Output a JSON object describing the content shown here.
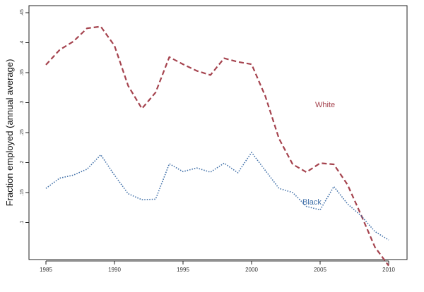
{
  "chart_data": {
    "type": "line",
    "title": "",
    "xlabel": "",
    "ylabel": "Fraction employed (annual average)",
    "xlim": [
      1985,
      2010
    ],
    "ylim": [
      0.05,
      0.45
    ],
    "x_ticks": [
      1985,
      1990,
      1995,
      2000,
      2005,
      2010
    ],
    "y_ticks": [
      {
        "value": 0.1,
        "label": ".1"
      },
      {
        "value": 0.15,
        "label": ".15"
      },
      {
        "value": 0.2,
        "label": ".2"
      },
      {
        "value": 0.25,
        "label": ".25"
      },
      {
        "value": 0.3,
        "label": ".3"
      },
      {
        "value": 0.35,
        "label": ".35"
      },
      {
        "value": 0.4,
        "label": ".4"
      },
      {
        "value": 0.45,
        "label": ".45"
      }
    ],
    "grid": false,
    "x": [
      1985,
      1986,
      1987,
      1988,
      1989,
      1990,
      1991,
      1992,
      1993,
      1994,
      1995,
      1996,
      1997,
      1998,
      1999,
      2000,
      2001,
      2002,
      2003,
      2004,
      2005,
      2006,
      2007,
      2008,
      2009,
      2010
    ],
    "series": [
      {
        "name": "White",
        "color": "#a5434e",
        "style": "dashed",
        "values": [
          0.363,
          0.388,
          0.402,
          0.424,
          0.427,
          0.395,
          0.328,
          0.29,
          0.317,
          0.376,
          0.364,
          0.353,
          0.346,
          0.374,
          0.368,
          0.364,
          0.311,
          0.24,
          0.197,
          0.184,
          0.199,
          0.197,
          0.163,
          0.112,
          0.059,
          0.028
        ]
      },
      {
        "name": "Black",
        "color": "#3f6fa8",
        "style": "dotted",
        "values": [
          0.157,
          0.174,
          0.179,
          0.189,
          0.213,
          0.179,
          0.148,
          0.138,
          0.139,
          0.198,
          0.185,
          0.191,
          0.184,
          0.199,
          0.183,
          0.217,
          0.187,
          0.157,
          0.15,
          0.127,
          0.121,
          0.16,
          0.131,
          0.111,
          0.085,
          0.071
        ]
      }
    ]
  }
}
